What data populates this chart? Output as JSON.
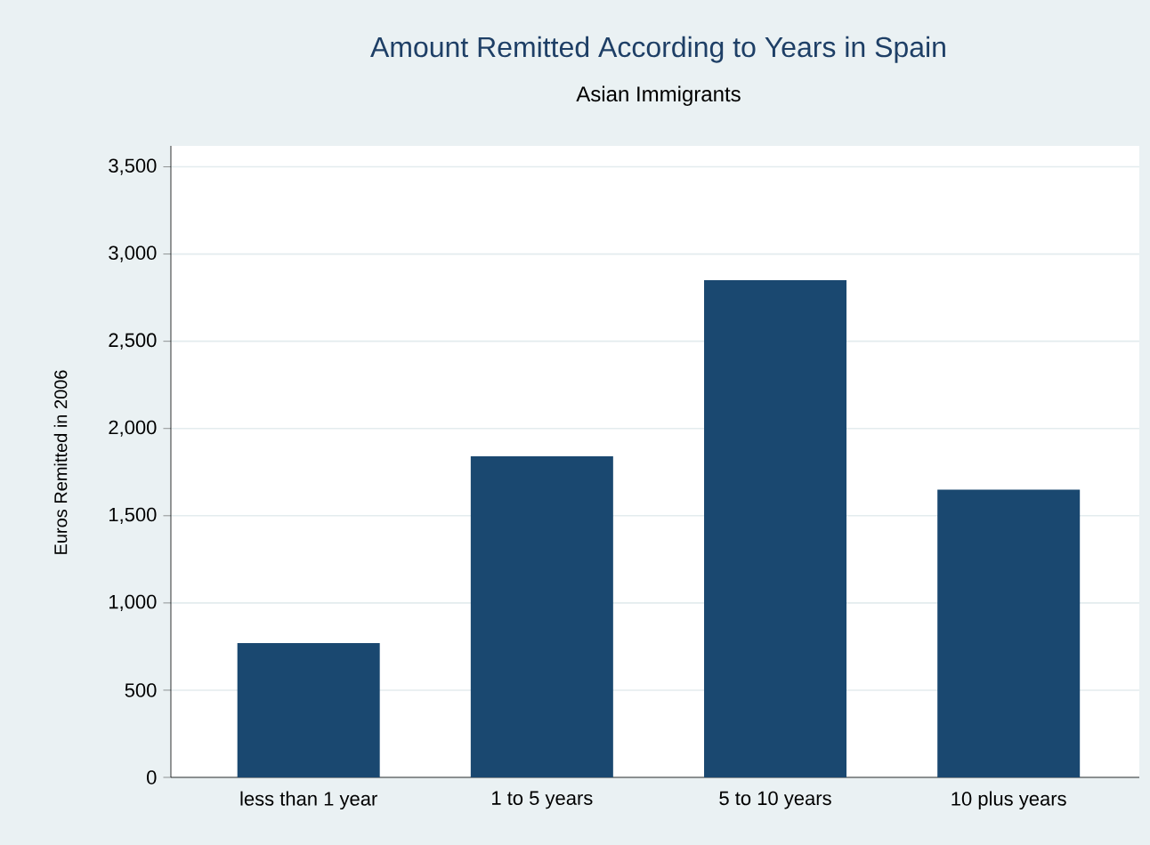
{
  "chart_data": {
    "type": "bar",
    "title": "Amount Remitted According to Years in Spain",
    "subtitle": "Asian Immigrants",
    "ylabel": "Euros Remitted in 2006",
    "categories": [
      "less than 1 year",
      "1 to 5 years",
      "5 to 10 years",
      "10 plus years"
    ],
    "values": [
      770,
      1840,
      2850,
      1650
    ],
    "color": "#1a4870",
    "ylim": [
      0,
      3620
    ],
    "yticks": [
      0,
      500,
      {
        "value": 1000,
        "label": "1,000"
      },
      {
        "value": 1500,
        "label": "1,500"
      },
      {
        "value": 2000,
        "label": "2,000"
      },
      {
        "value": 2500,
        "label": "2,500"
      },
      {
        "value": 3000,
        "label": "3,000"
      },
      {
        "value": 3500,
        "label": "3,500"
      }
    ],
    "grid": "y"
  }
}
